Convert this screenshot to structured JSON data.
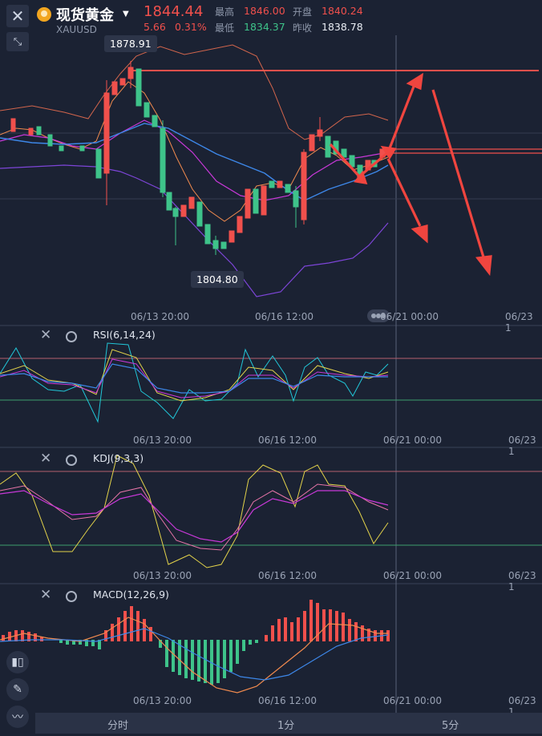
{
  "header": {
    "title": "现货黄金",
    "symbol": "XAUUSD",
    "price": "1844.44",
    "change": "5.66",
    "change_pct": "0.31%",
    "high_label": "最高",
    "high": "1846.00",
    "open_label": "开盘",
    "open": "1840.24",
    "low_label": "最低",
    "low": "1834.37",
    "prev_label": "昨收",
    "prev": "1838.78"
  },
  "main_chart": {
    "max_tag": "1878.91",
    "min_tag": "1804.80",
    "x_ticks": [
      "06/13 20:00",
      "06/16 12:00",
      "06/21 00:00",
      "06/23 1"
    ]
  },
  "rsi": {
    "label": "RSI(6,14,24)",
    "x_ticks": [
      "06/13 20:00",
      "06/16 12:00",
      "06/21 00:00",
      "06/23 1"
    ]
  },
  "kdj": {
    "label": "KDJ(9,3,3)",
    "x_ticks": [
      "06/13 20:00",
      "06/16 12:00",
      "06/21 00:00",
      "06/23 1"
    ]
  },
  "macd": {
    "label": "MACD(12,26,9)",
    "x_ticks": [
      "06/13 20:00",
      "06/16 12:00",
      "06/21 00:00",
      "06/23 1"
    ]
  },
  "bottom_tabs": [
    "分时",
    "1分",
    "5分"
  ],
  "colors": {
    "up": "#f0504c",
    "down": "#3ec38a",
    "bg": "#1b2233"
  }
}
